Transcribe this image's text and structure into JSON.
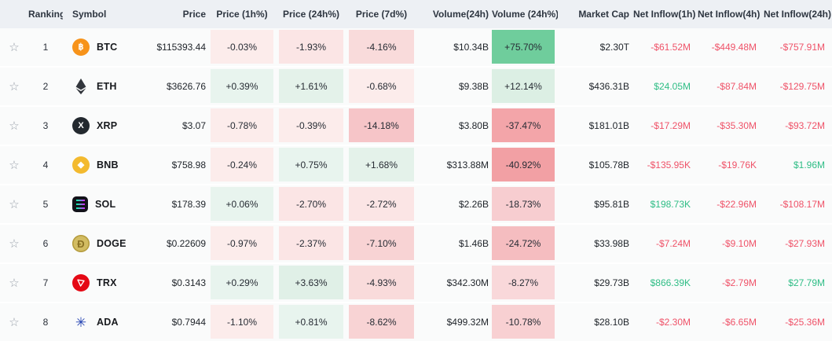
{
  "header": {
    "columns": [
      {
        "label": ""
      },
      {
        "label": "Ranking"
      },
      {
        "label": "Symbol"
      },
      {
        "label": "Price"
      },
      {
        "label": "Price (1h%)"
      },
      {
        "label": "Price (24h%)"
      },
      {
        "label": "Price (7d%)"
      },
      {
        "label": "Volume(24h)"
      },
      {
        "label": "Volume (24h%)"
      },
      {
        "label": "Market Cap"
      },
      {
        "label": "Net Inflow(1h)"
      },
      {
        "label": "Net Inflow(4h)"
      },
      {
        "label": "Net Inflow(24h)"
      }
    ]
  },
  "colors": {
    "header_bg": "#edf0f4",
    "row_bg": "#fafbfb",
    "inflow_positive": "#2ebd85",
    "inflow_negative": "#ef5268",
    "strong_gain_cell": "#6fcd9c"
  },
  "icon_styles": {
    "btc-icon": {
      "shape": "circle",
      "bg": "#F7931A",
      "fg": "#FFFFFF",
      "glyph": "฿"
    },
    "eth-icon": {
      "shape": "eth",
      "fg": "#32363C"
    },
    "xrp-icon": {
      "shape": "circle",
      "bg": "#23292F",
      "fg": "#FFFFFF",
      "glyph": "X"
    },
    "bnb-icon": {
      "shape": "circle",
      "bg": "#F3BA2F",
      "fg": "#FFFFFF",
      "glyph": "◆"
    },
    "sol-icon": {
      "shape": "sol",
      "bg": "#121219",
      "g1": "#00FFA3",
      "g2": "#DC1FFF"
    },
    "doge-icon": {
      "shape": "circle",
      "bg": "#D2BC62",
      "fg": "#8A7124",
      "glyph": "Ð",
      "border": "#B49B3E"
    },
    "trx-icon": {
      "shape": "trx",
      "bg": "#E50915",
      "fg": "#FFFFFF"
    },
    "ada-icon": {
      "shape": "ada",
      "fg": "#2443B2",
      "glyph": "✳"
    }
  },
  "star_glyph": "☆",
  "rows": [
    {
      "rank": "1",
      "symbol": "BTC",
      "icon": "btc-icon",
      "price": "$115393.44",
      "p1h": {
        "text": "-0.03%",
        "bg": "#fceceb"
      },
      "p24h": {
        "text": "-1.93%",
        "bg": "#fbe5e5"
      },
      "p7d": {
        "text": "-4.16%",
        "bg": "#f9dbdb"
      },
      "vol": "$10.34B",
      "volp": {
        "text": "+75.70%",
        "bg": "#6fcd9c"
      },
      "mcap": "$2.30T",
      "ni1h": {
        "text": "-$61.52M",
        "color": "#ef5268"
      },
      "ni4h": {
        "text": "-$449.48M",
        "color": "#ef5268"
      },
      "ni24h": {
        "text": "-$757.91M",
        "color": "#ef5268"
      }
    },
    {
      "rank": "2",
      "symbol": "ETH",
      "icon": "eth-icon",
      "price": "$3626.76",
      "p1h": {
        "text": "+0.39%",
        "bg": "#e8f4ee"
      },
      "p24h": {
        "text": "+1.61%",
        "bg": "#e4f2ea"
      },
      "p7d": {
        "text": "-0.68%",
        "bg": "#fceceb"
      },
      "vol": "$9.38B",
      "volp": {
        "text": "+12.14%",
        "bg": "#dcefe4"
      },
      "mcap": "$436.31B",
      "ni1h": {
        "text": "$24.05M",
        "color": "#2ebd85"
      },
      "ni4h": {
        "text": "-$87.84M",
        "color": "#ef5268"
      },
      "ni24h": {
        "text": "-$129.75M",
        "color": "#ef5268"
      }
    },
    {
      "rank": "3",
      "symbol": "XRP",
      "icon": "xrp-icon",
      "price": "$3.07",
      "p1h": {
        "text": "-0.78%",
        "bg": "#fceceb"
      },
      "p24h": {
        "text": "-0.39%",
        "bg": "#fceceb"
      },
      "p7d": {
        "text": "-14.18%",
        "bg": "#f6c5c8"
      },
      "vol": "$3.80B",
      "volp": {
        "text": "-37.47%",
        "bg": "#f3a5a9"
      },
      "mcap": "$181.01B",
      "ni1h": {
        "text": "-$17.29M",
        "color": "#ef5268"
      },
      "ni4h": {
        "text": "-$35.30M",
        "color": "#ef5268"
      },
      "ni24h": {
        "text": "-$93.72M",
        "color": "#ef5268"
      }
    },
    {
      "rank": "4",
      "symbol": "BNB",
      "icon": "bnb-icon",
      "price": "$758.98",
      "p1h": {
        "text": "-0.24%",
        "bg": "#fceceb"
      },
      "p24h": {
        "text": "+0.75%",
        "bg": "#e8f4ee"
      },
      "p7d": {
        "text": "+1.68%",
        "bg": "#e4f2ea"
      },
      "vol": "$313.88M",
      "volp": {
        "text": "-40.92%",
        "bg": "#f2a0a4"
      },
      "mcap": "$105.78B",
      "ni1h": {
        "text": "-$135.95K",
        "color": "#ef5268"
      },
      "ni4h": {
        "text": "-$19.76K",
        "color": "#ef5268"
      },
      "ni24h": {
        "text": "$1.96M",
        "color": "#2ebd85"
      }
    },
    {
      "rank": "5",
      "symbol": "SOL",
      "icon": "sol-icon",
      "price": "$178.39",
      "p1h": {
        "text": "+0.06%",
        "bg": "#e8f4ee"
      },
      "p24h": {
        "text": "-2.70%",
        "bg": "#fbe5e5"
      },
      "p7d": {
        "text": "-2.72%",
        "bg": "#fbe5e5"
      },
      "vol": "$2.26B",
      "volp": {
        "text": "-18.73%",
        "bg": "#f7cdd0"
      },
      "mcap": "$95.81B",
      "ni1h": {
        "text": "$198.73K",
        "color": "#2ebd85"
      },
      "ni4h": {
        "text": "-$22.96M",
        "color": "#ef5268"
      },
      "ni24h": {
        "text": "-$108.17M",
        "color": "#ef5268"
      }
    },
    {
      "rank": "6",
      "symbol": "DOGE",
      "icon": "doge-icon",
      "price": "$0.22609",
      "p1h": {
        "text": "-0.97%",
        "bg": "#fceceb"
      },
      "p24h": {
        "text": "-2.37%",
        "bg": "#fbe5e5"
      },
      "p7d": {
        "text": "-7.10%",
        "bg": "#f8d3d4"
      },
      "vol": "$1.46B",
      "volp": {
        "text": "-24.72%",
        "bg": "#f5bdc0"
      },
      "mcap": "$33.98B",
      "ni1h": {
        "text": "-$7.24M",
        "color": "#ef5268"
      },
      "ni4h": {
        "text": "-$9.10M",
        "color": "#ef5268"
      },
      "ni24h": {
        "text": "-$27.93M",
        "color": "#ef5268"
      }
    },
    {
      "rank": "7",
      "symbol": "TRX",
      "icon": "trx-icon",
      "price": "$0.3143",
      "p1h": {
        "text": "+0.29%",
        "bg": "#e8f4ee"
      },
      "p24h": {
        "text": "+3.63%",
        "bg": "#e0f0e7"
      },
      "p7d": {
        "text": "-4.93%",
        "bg": "#f9dbdb"
      },
      "vol": "$342.30M",
      "volp": {
        "text": "-8.27%",
        "bg": "#f9d8da"
      },
      "mcap": "$29.73B",
      "ni1h": {
        "text": "$866.39K",
        "color": "#2ebd85"
      },
      "ni4h": {
        "text": "-$2.79M",
        "color": "#ef5268"
      },
      "ni24h": {
        "text": "$27.79M",
        "color": "#2ebd85"
      }
    },
    {
      "rank": "8",
      "symbol": "ADA",
      "icon": "ada-icon",
      "price": "$0.7944",
      "p1h": {
        "text": "-1.10%",
        "bg": "#fceceb"
      },
      "p24h": {
        "text": "+0.81%",
        "bg": "#e8f4ee"
      },
      "p7d": {
        "text": "-8.62%",
        "bg": "#f8d3d4"
      },
      "vol": "$499.32M",
      "volp": {
        "text": "-10.78%",
        "bg": "#f8d0d2"
      },
      "mcap": "$28.10B",
      "ni1h": {
        "text": "-$2.30M",
        "color": "#ef5268"
      },
      "ni4h": {
        "text": "-$6.65M",
        "color": "#ef5268"
      },
      "ni24h": {
        "text": "-$25.36M",
        "color": "#ef5268"
      }
    }
  ]
}
